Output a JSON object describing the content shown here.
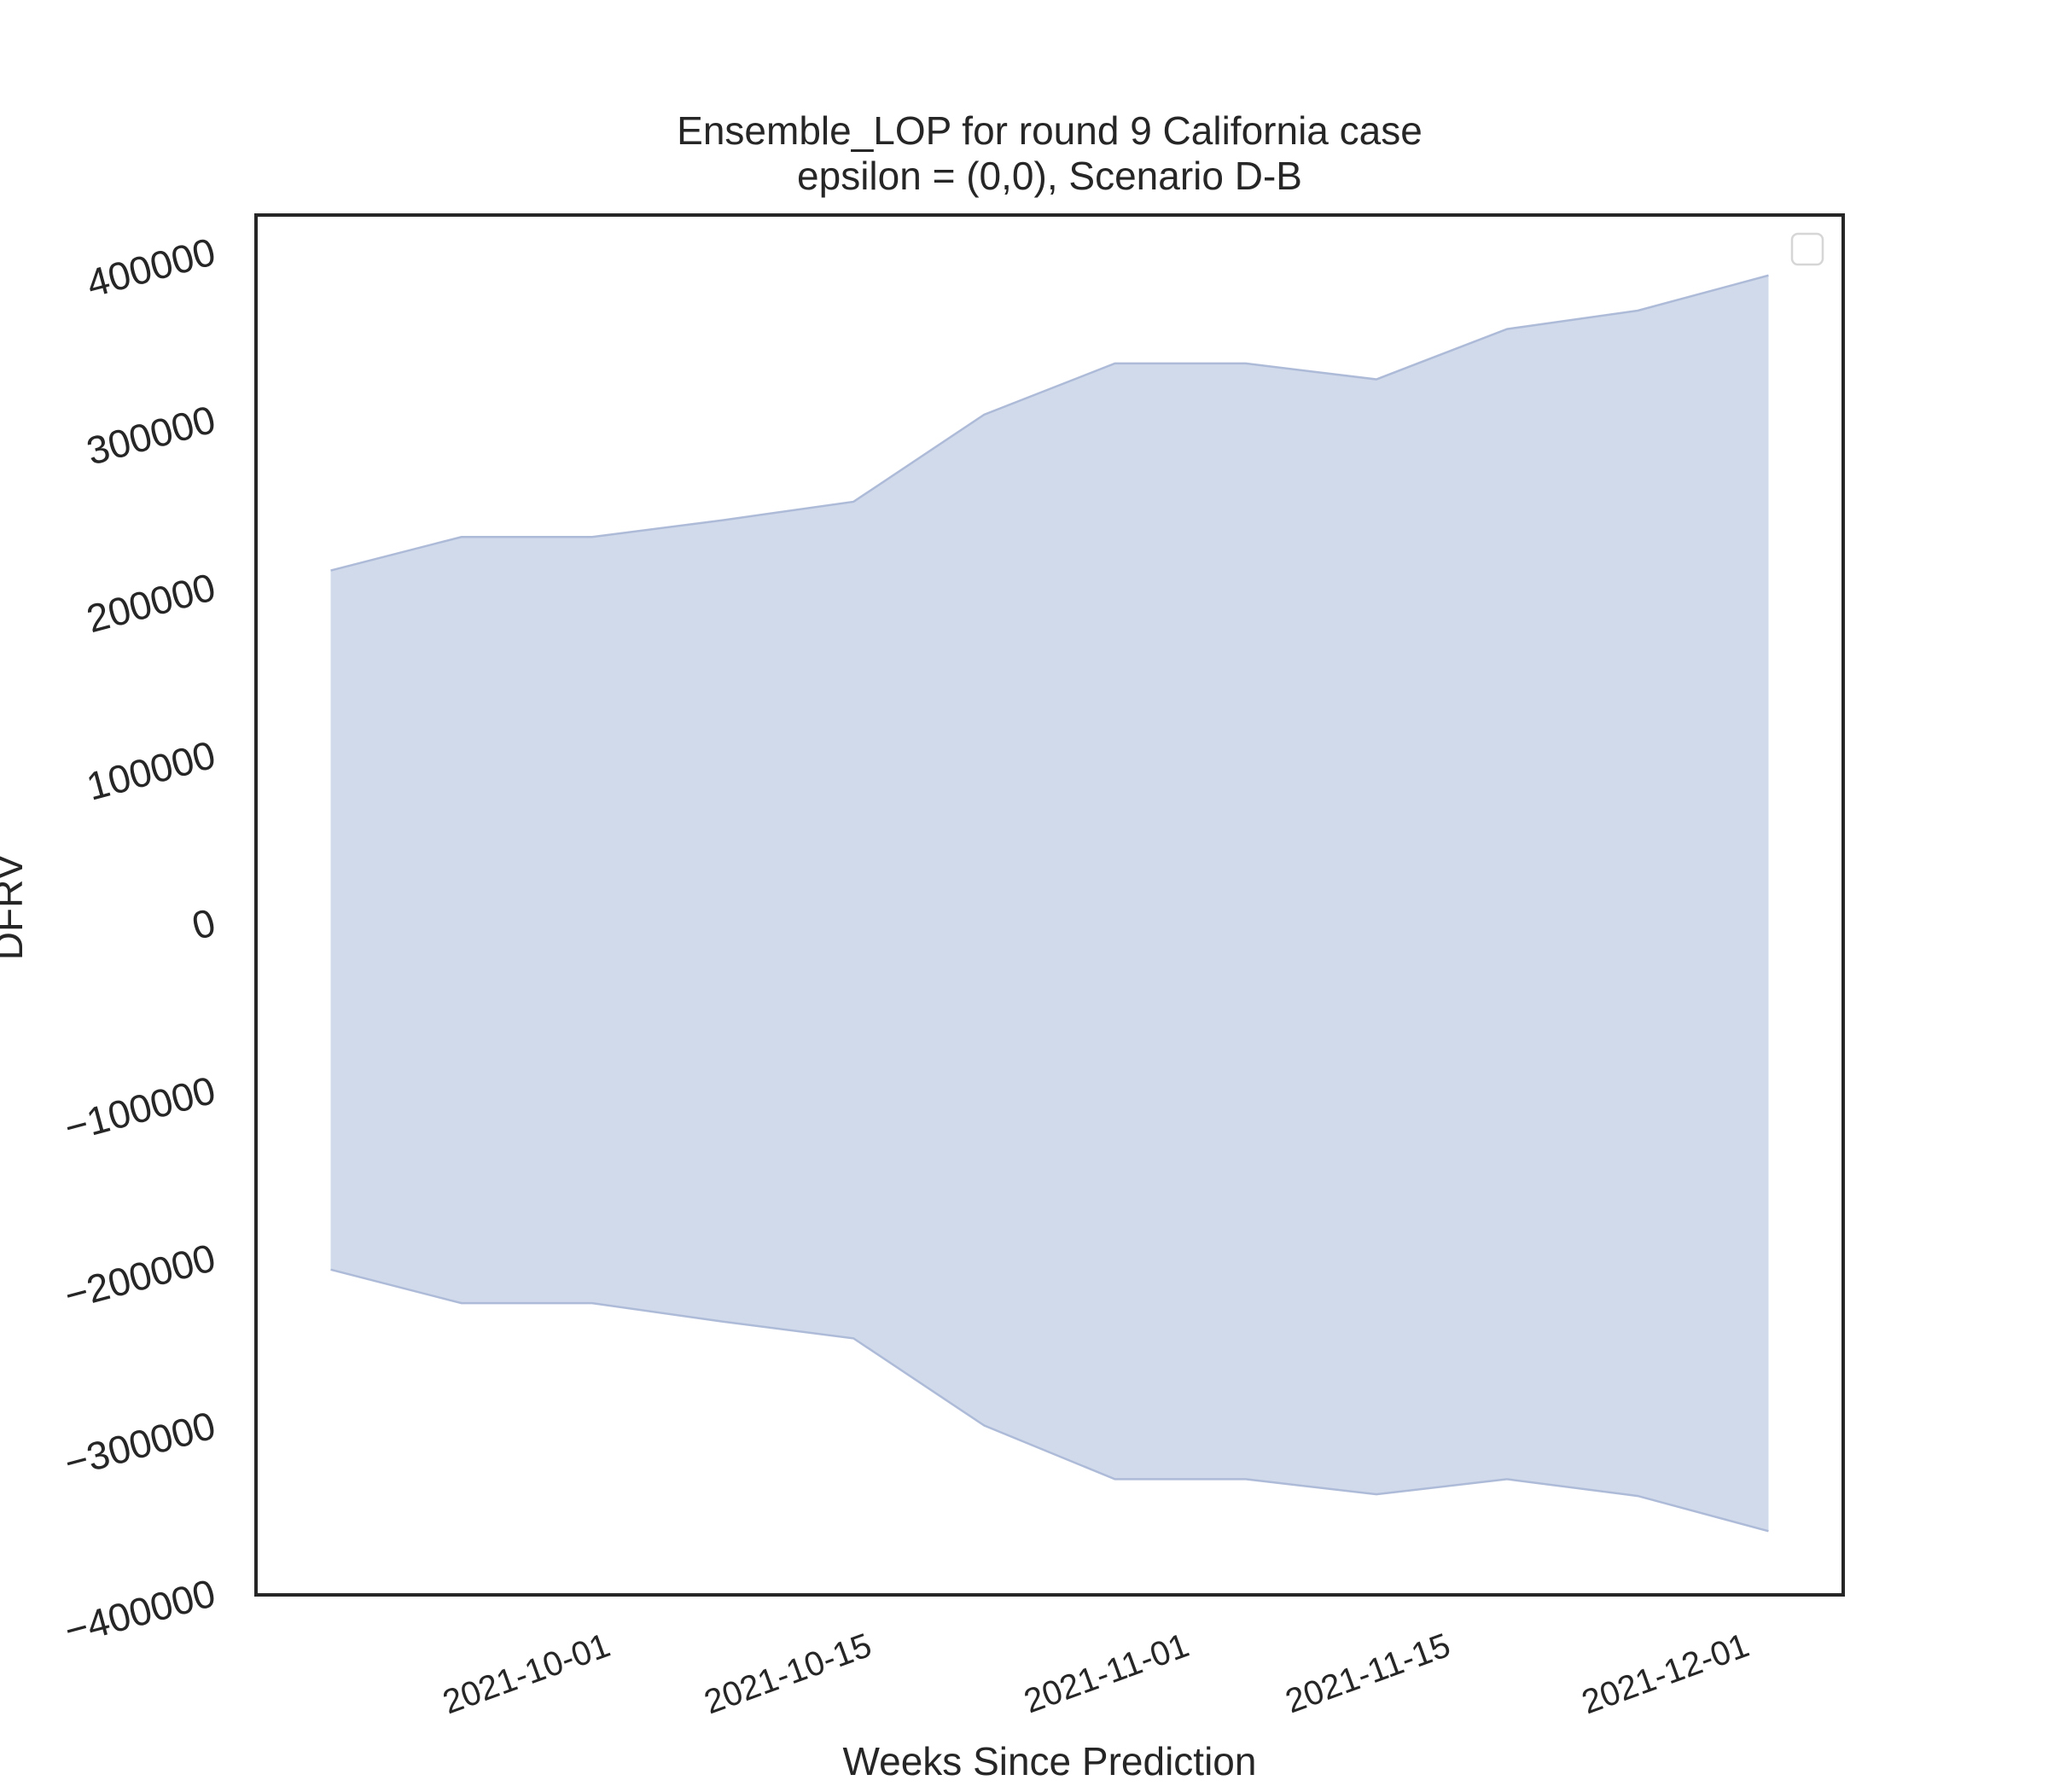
{
  "chart_data": {
    "type": "band",
    "title": "Ensemble_LOP for round 9 California case",
    "subtitle": "epsilon = (0,0), Scenario D-B",
    "x_label": "Weeks Since Prediction",
    "y_label": "DFRV",
    "x": [
      "2021-09-17",
      "2021-09-24",
      "2021-10-01",
      "2021-10-08",
      "2021-10-15",
      "2021-10-22",
      "2021-10-29",
      "2021-11-05",
      "2021-11-12",
      "2021-11-19",
      "2021-11-26",
      "2021-12-03"
    ],
    "upper": [
      211000,
      231000,
      231000,
      241000,
      252000,
      304000,
      334500,
      334500,
      325000,
      355000,
      366000,
      387000
    ],
    "lower": [
      -206000,
      -226000,
      -226000,
      -237000,
      -247000,
      -299000,
      -331000,
      -331000,
      -340000,
      -331000,
      -341000,
      -362000
    ],
    "color": "#d0daeb",
    "edge_color": "#aebbd8",
    "xlim": [
      "2021-09-13",
      "2021-12-07"
    ],
    "xticks": [
      "2021-10-01",
      "2021-10-15",
      "2021-11-01",
      "2021-11-15",
      "2021-12-01"
    ],
    "ylim": [
      -400000,
      423000
    ],
    "yticks": [
      {
        "value": -400000,
        "label": "−400000"
      },
      {
        "value": -300000,
        "label": "−300000"
      },
      {
        "value": -200000,
        "label": "−200000"
      },
      {
        "value": -100000,
        "label": "−100000"
      },
      0,
      100000,
      200000,
      300000,
      400000
    ],
    "grid": false
  }
}
